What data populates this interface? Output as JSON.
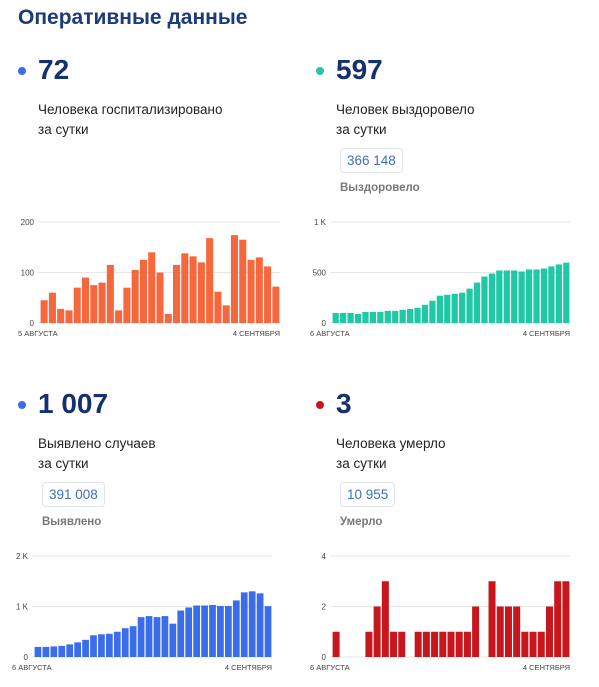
{
  "page_title": "Оперативные данные",
  "panels": [
    {
      "big": "72",
      "desc1": "Человека госпитализировано",
      "desc2": "за сутки",
      "badge": "",
      "badge_label": "",
      "color": "#f5673d",
      "dot_color": "#3b6ce9"
    },
    {
      "big": "597",
      "desc1": "Человек выздоровело",
      "desc2": "за сутки",
      "badge": "366 148",
      "badge_label": "Выздоровело",
      "color": "#1fc9a5",
      "dot_color": "#1fc9a5"
    },
    {
      "big": "1 007",
      "desc1": "Выявлено случаев",
      "desc2": "за сутки",
      "badge": "391 008",
      "badge_label": "Выявлено",
      "color": "#3b6ce9",
      "dot_color": "#3b6ce9"
    },
    {
      "big": "3",
      "desc1": "Человека умерло",
      "desc2": "за сутки",
      "badge": "10 955",
      "badge_label": "Умерло",
      "color": "#c8161d",
      "dot_color": "#c8161d"
    }
  ],
  "chart_data": [
    {
      "type": "bar",
      "series_of": "panel-1",
      "x_start_label": "5 АВГУСТА",
      "x_end_label": "4 СЕНТЯБРЯ",
      "ylim": [
        0,
        200
      ],
      "yticks": [
        0,
        100,
        200
      ],
      "ytick_labels": [
        "0",
        "100",
        "200"
      ],
      "values": [
        45,
        60,
        28,
        25,
        70,
        90,
        75,
        80,
        115,
        25,
        70,
        105,
        125,
        140,
        100,
        18,
        115,
        138,
        132,
        120,
        168,
        62,
        35,
        174,
        165,
        125,
        130,
        112,
        72
      ]
    },
    {
      "type": "bar",
      "series_of": "panel-2",
      "x_start_label": "6 АВГУСТА",
      "x_end_label": "4 СЕНТЯБРЯ",
      "ylim": [
        0,
        1000
      ],
      "yticks": [
        0,
        500,
        1000
      ],
      "ytick_labels": [
        "0",
        "500",
        "1 K"
      ],
      "values": [
        100,
        100,
        100,
        90,
        110,
        110,
        110,
        120,
        120,
        130,
        140,
        150,
        180,
        220,
        270,
        280,
        290,
        300,
        340,
        400,
        460,
        490,
        520,
        520,
        520,
        510,
        530,
        530,
        540,
        560,
        580,
        597
      ]
    },
    {
      "type": "bar",
      "series_of": "panel-3",
      "x_start_label": "6 АВГУСТА",
      "x_end_label": "4 СЕНТЯБРЯ",
      "ylim": [
        0,
        2000
      ],
      "yticks": [
        0,
        1000,
        2000
      ],
      "ytick_labels": [
        "0",
        "1 K",
        "2 K"
      ],
      "values": [
        200,
        200,
        210,
        220,
        250,
        290,
        340,
        430,
        450,
        460,
        500,
        570,
        610,
        790,
        810,
        790,
        810,
        660,
        920,
        980,
        1020,
        1020,
        1030,
        1010,
        1010,
        1120,
        1280,
        1300,
        1260,
        1007
      ]
    },
    {
      "type": "bar",
      "series_of": "panel-4",
      "x_start_label": "6 АВГУСТА",
      "x_end_label": "4 СЕНТЯБРЯ",
      "ylim": [
        0,
        4
      ],
      "yticks": [
        0,
        2,
        4
      ],
      "ytick_labels": [
        "0",
        "2",
        "4"
      ],
      "values": [
        1,
        0,
        0,
        0,
        1,
        2,
        3,
        1,
        1,
        0,
        1,
        1,
        1,
        1,
        1,
        1,
        1,
        2,
        0,
        3,
        2,
        2,
        2,
        1,
        1,
        1,
        2,
        3,
        3
      ]
    }
  ]
}
